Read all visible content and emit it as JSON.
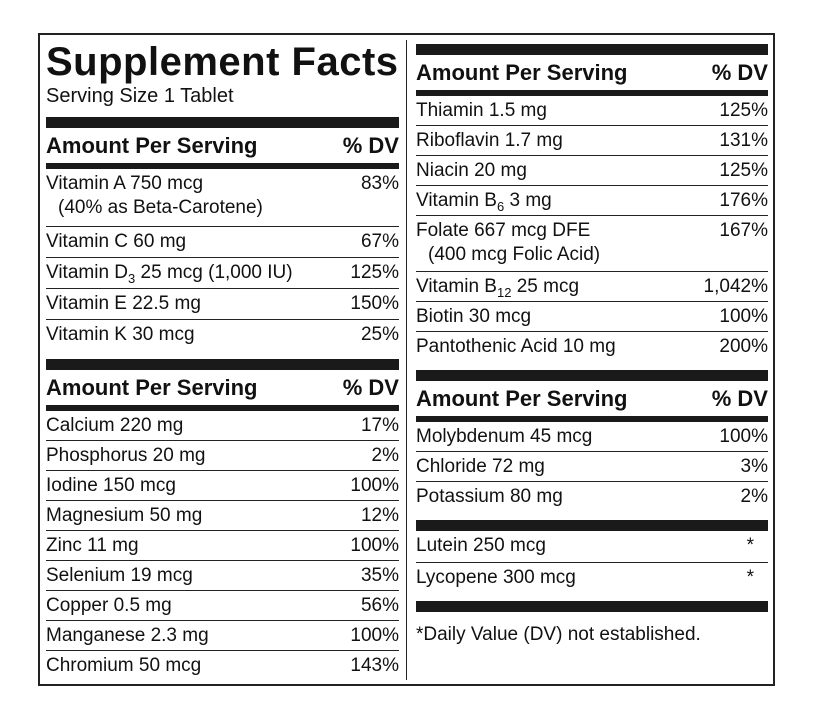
{
  "title": "Supplement Facts",
  "serving": "Serving Size 1 Tablet",
  "header": {
    "amount": "Amount Per Serving",
    "dv": "% DV"
  },
  "vitamins_left": [
    {
      "name": "Vitamin A 750 mcg",
      "sub": "(40% as Beta-Carotene)",
      "dv": "83%"
    },
    {
      "name": "Vitamin C 60 mg",
      "dv": "67%"
    },
    {
      "name": "Vitamin D",
      "subscript": "3",
      "name_rest": " 25 mcg (1,000 IU)",
      "dv": "125%"
    },
    {
      "name": "Vitamin E 22.5 mg",
      "dv": "150%"
    },
    {
      "name": "Vitamin K 30 mcg",
      "dv": "25%"
    }
  ],
  "minerals_left": [
    {
      "name": "Calcium 220 mg",
      "dv": "17%"
    },
    {
      "name": "Phosphorus 20 mg",
      "dv": "2%"
    },
    {
      "name": "Iodine 150 mcg",
      "dv": "100%"
    },
    {
      "name": "Magnesium 50 mg",
      "dv": "12%"
    },
    {
      "name": "Zinc 11 mg",
      "dv": "100%"
    },
    {
      "name": "Selenium 19 mcg",
      "dv": "35%"
    },
    {
      "name": "Copper 0.5 mg",
      "dv": "56%"
    },
    {
      "name": "Manganese 2.3 mg",
      "dv": "100%"
    },
    {
      "name": "Chromium 50 mcg",
      "dv": "143%"
    }
  ],
  "vitamins_right": [
    {
      "name": "Thiamin 1.5 mg",
      "dv": "125%"
    },
    {
      "name": "Riboflavin 1.7 mg",
      "dv": "131%"
    },
    {
      "name": "Niacin 20 mg",
      "dv": "125%"
    },
    {
      "name": "Vitamin B",
      "subscript": "6",
      "name_rest": " 3 mg",
      "dv": "176%"
    },
    {
      "name": "Folate 667 mcg DFE",
      "sub": "(400 mcg Folic Acid)",
      "dv": "167%"
    },
    {
      "name": "Vitamin B",
      "subscript": "12",
      "name_rest": " 25 mcg",
      "dv": "1,042%"
    },
    {
      "name": "Biotin 30 mcg",
      "dv": "100%"
    },
    {
      "name": "Pantothenic Acid 10 mg",
      "dv": "200%"
    }
  ],
  "minerals_right": [
    {
      "name": "Molybdenum 45 mcg",
      "dv": "100%"
    },
    {
      "name": "Chloride 72 mg",
      "dv": "3%"
    },
    {
      "name": "Potassium 80 mg",
      "dv": "2%"
    }
  ],
  "other": [
    {
      "name": "Lutein 250 mcg",
      "dv": "*"
    },
    {
      "name": "Lycopene 300 mcg",
      "dv": "*"
    }
  ],
  "footnote": "*Daily Value (DV) not established."
}
